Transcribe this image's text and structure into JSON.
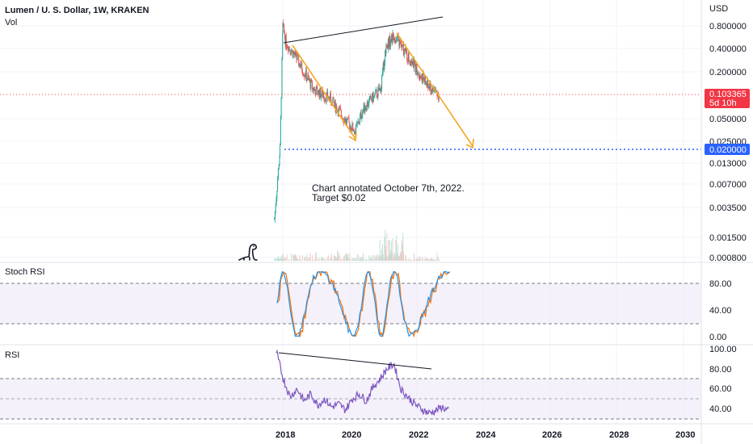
{
  "header": {
    "symbol_title": "Lumen / U. S. Dollar, 1W, KRAKEN",
    "vol_label": "Vol"
  },
  "price_axis": {
    "currency": "USD",
    "ticks": [
      "0.800000",
      "0.400000",
      "0.200000",
      "0.050000",
      "0.025000",
      "0.013000",
      "0.007000",
      "0.003500",
      "0.001500",
      "0.000800"
    ],
    "current_price": "0.103365",
    "countdown": "5d 10h",
    "target_price": "0.020000"
  },
  "annotation": {
    "line1": "Chart annotated October 7th, 2022.",
    "line2": "Target $0.02"
  },
  "stoch_rsi": {
    "title": "Stoch RSI",
    "ticks": [
      "80.00",
      "40.00",
      "0.00"
    ]
  },
  "rsi": {
    "title": "RSI",
    "ticks": [
      "100.00",
      "80.00",
      "60.00",
      "40.00"
    ]
  },
  "x_axis": {
    "ticks": [
      "2018",
      "2020",
      "2022",
      "2024",
      "2026",
      "2028",
      "2030"
    ]
  },
  "colors": {
    "up": "#26a69a",
    "down": "#ef5350",
    "arrow": "#f5a623",
    "target_line": "#2962ff",
    "current_price_badge": "#f23645",
    "target_badge": "#2962ff",
    "stoch_k": "#2196f3",
    "stoch_d": "#ff6d00",
    "rsi_line": "#7e57c2",
    "band_fill": "#ede7f6"
  },
  "chart_data": [
    {
      "type": "candlestick",
      "title": "Lumen / U. S. Dollar, 1W, KRAKEN",
      "y_scale": "log",
      "ylim": [
        0.0008,
        1.2
      ],
      "xlim": [
        "2017-04",
        "2030-10"
      ],
      "series": [
        {
          "name": "price",
          "x": [
            "2017-10",
            "2017-12",
            "2018-01",
            "2018-02",
            "2018-06",
            "2018-12",
            "2019-06",
            "2019-12",
            "2020-03",
            "2020-06",
            "2020-12",
            "2021-02",
            "2021-05",
            "2021-09",
            "2022-01",
            "2022-05",
            "2022-09"
          ],
          "values": [
            0.0025,
            0.02,
            0.8,
            0.5,
            0.3,
            0.12,
            0.09,
            0.045,
            0.035,
            0.07,
            0.12,
            0.45,
            0.6,
            0.35,
            0.22,
            0.13,
            0.103365
          ]
        }
      ],
      "current_price": 0.103365,
      "target": 0.02,
      "annotations": [
        "Chart annotated October 7th, 2022.",
        "Target $0.02"
      ]
    },
    {
      "type": "line",
      "title": "Stoch RSI",
      "ylim": [
        0,
        100
      ],
      "bands": [
        20,
        80
      ],
      "series": [
        {
          "values": [
            95,
            5,
            10,
            90,
            85,
            20,
            5,
            60,
            95,
            90,
            10,
            5,
            80,
            95,
            40,
            5,
            10,
            90,
            85,
            20,
            5,
            70,
            95,
            50
          ]
        }
      ]
    },
    {
      "type": "line",
      "title": "RSI",
      "ylim": [
        30,
        100
      ],
      "bands": [
        30,
        50,
        70
      ],
      "series": [
        {
          "values": [
            97,
            70,
            52,
            60,
            48,
            55,
            44,
            50,
            42,
            45,
            39,
            50,
            55,
            48,
            62,
            70,
            80,
            85,
            60,
            52,
            45,
            40,
            36,
            38,
            42,
            37
          ]
        }
      ]
    }
  ]
}
